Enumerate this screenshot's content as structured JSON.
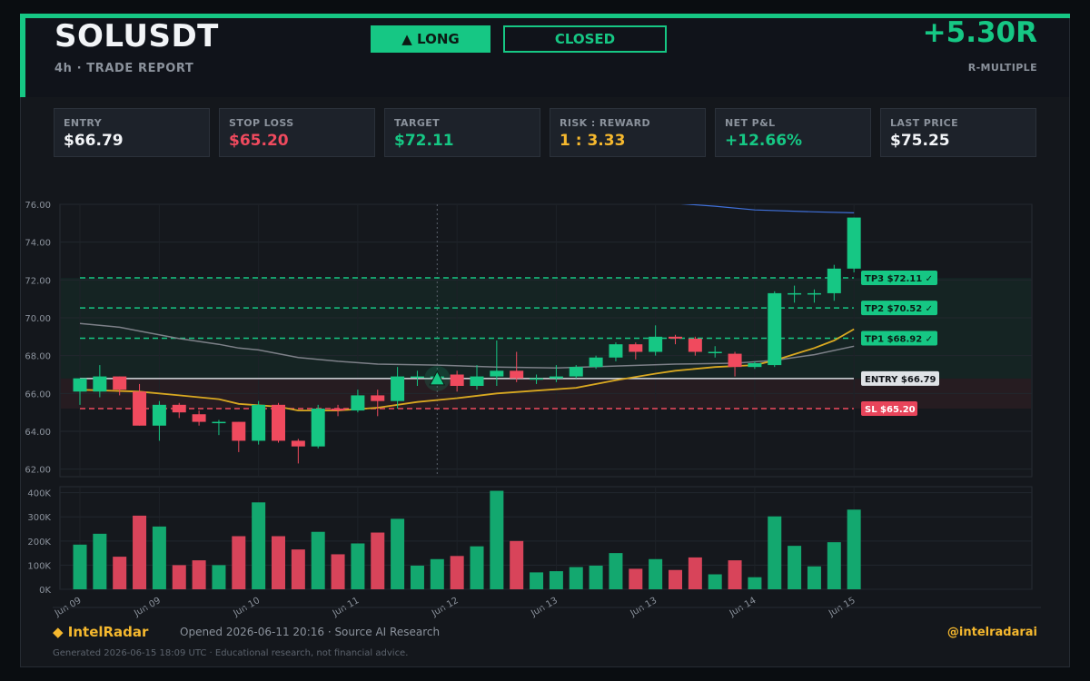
{
  "header": {
    "symbol": "SOLUSDT",
    "subtitle": "4h  ·  TRADE REPORT",
    "direction_label": "▲ LONG",
    "status_label": "CLOSED",
    "r_multiple": "+5.30R",
    "r_multiple_label": "R-MULTIPLE"
  },
  "stats": [
    {
      "label": "ENTRY",
      "value": "$66.79",
      "color": "#f2f4f7"
    },
    {
      "label": "STOP LOSS",
      "value": "$65.20",
      "color": "#f04a5e"
    },
    {
      "label": "TARGET",
      "value": "$72.11",
      "color": "#16c784"
    },
    {
      "label": "RISK : REWARD",
      "value": "1 : 3.33",
      "color": "#f5b82e"
    },
    {
      "label": "NET P&L",
      "value": "+12.66%",
      "color": "#16c784"
    },
    {
      "label": "LAST PRICE",
      "value": "$75.25",
      "color": "#f2f4f7"
    }
  ],
  "colors": {
    "up": "#16c784",
    "down": "#f04a5e",
    "accent": "#f5b82e",
    "muted": "#8b929c"
  },
  "chart_data": {
    "type": "candlestick",
    "ylim": [
      61.6,
      76.0
    ],
    "yticks": [
      "62.00",
      "64.00",
      "66.00",
      "68.00",
      "70.00",
      "72.00",
      "74.00",
      "76.00"
    ],
    "volume_ylim": [
      0,
      425000
    ],
    "volume_ticks": [
      "0K",
      "100K",
      "200K",
      "300K",
      "400K"
    ],
    "x_tick_labels": [
      {
        "i": 0,
        "label": "Jun 09"
      },
      {
        "i": 4,
        "label": "Jun 09"
      },
      {
        "i": 9,
        "label": "Jun 10"
      },
      {
        "i": 14,
        "label": "Jun 11"
      },
      {
        "i": 19,
        "label": "Jun 12"
      },
      {
        "i": 24,
        "label": "Jun 13"
      },
      {
        "i": 29,
        "label": "Jun 13"
      },
      {
        "i": 34,
        "label": "Jun 14"
      },
      {
        "i": 39,
        "label": "Jun 15"
      }
    ],
    "entry_index": 18,
    "candles": [
      {
        "o": 66.1,
        "h": 66.8,
        "l": 65.4,
        "c": 66.8,
        "v": 185000
      },
      {
        "o": 66.1,
        "h": 67.5,
        "l": 65.8,
        "c": 66.9,
        "v": 230000
      },
      {
        "o": 66.9,
        "h": 66.9,
        "l": 65.9,
        "c": 66.2,
        "v": 135000
      },
      {
        "o": 66.1,
        "h": 66.5,
        "l": 64.3,
        "c": 64.3,
        "v": 305000
      },
      {
        "o": 64.3,
        "h": 65.6,
        "l": 63.5,
        "c": 65.4,
        "v": 260000
      },
      {
        "o": 65.4,
        "h": 65.5,
        "l": 64.7,
        "c": 65.0,
        "v": 100000
      },
      {
        "o": 64.9,
        "h": 65.1,
        "l": 64.3,
        "c": 64.5,
        "v": 120000
      },
      {
        "o": 64.5,
        "h": 64.6,
        "l": 63.8,
        "c": 64.5,
        "v": 100000
      },
      {
        "o": 64.5,
        "h": 64.5,
        "l": 62.9,
        "c": 63.5,
        "v": 220000
      },
      {
        "o": 63.5,
        "h": 65.6,
        "l": 63.3,
        "c": 65.4,
        "v": 360000
      },
      {
        "o": 65.4,
        "h": 65.5,
        "l": 63.4,
        "c": 63.5,
        "v": 220000
      },
      {
        "o": 63.5,
        "h": 63.6,
        "l": 62.3,
        "c": 63.2,
        "v": 165000
      },
      {
        "o": 63.2,
        "h": 65.4,
        "l": 63.1,
        "c": 65.2,
        "v": 238000
      },
      {
        "o": 65.2,
        "h": 65.4,
        "l": 64.8,
        "c": 65.1,
        "v": 145000
      },
      {
        "o": 65.1,
        "h": 66.2,
        "l": 65.0,
        "c": 65.9,
        "v": 190000
      },
      {
        "o": 65.9,
        "h": 66.2,
        "l": 64.8,
        "c": 65.6,
        "v": 235000
      },
      {
        "o": 65.6,
        "h": 67.4,
        "l": 65.2,
        "c": 66.9,
        "v": 292000
      },
      {
        "o": 66.9,
        "h": 67.2,
        "l": 66.4,
        "c": 66.9,
        "v": 98000
      },
      {
        "o": 66.9,
        "h": 67.2,
        "l": 66.6,
        "c": 66.9,
        "v": 125000
      },
      {
        "o": 67.0,
        "h": 67.2,
        "l": 66.1,
        "c": 66.4,
        "v": 138000
      },
      {
        "o": 66.4,
        "h": 67.5,
        "l": 66.2,
        "c": 66.9,
        "v": 178000
      },
      {
        "o": 66.9,
        "h": 68.8,
        "l": 66.4,
        "c": 67.2,
        "v": 408000
      },
      {
        "o": 67.2,
        "h": 68.2,
        "l": 66.6,
        "c": 66.8,
        "v": 200000
      },
      {
        "o": 66.8,
        "h": 67.0,
        "l": 66.5,
        "c": 66.8,
        "v": 70000
      },
      {
        "o": 66.8,
        "h": 67.5,
        "l": 66.6,
        "c": 66.9,
        "v": 75000
      },
      {
        "o": 66.9,
        "h": 67.5,
        "l": 66.8,
        "c": 67.4,
        "v": 92000
      },
      {
        "o": 67.4,
        "h": 68.0,
        "l": 67.3,
        "c": 67.9,
        "v": 98000
      },
      {
        "o": 67.9,
        "h": 68.7,
        "l": 67.7,
        "c": 68.6,
        "v": 150000
      },
      {
        "o": 68.6,
        "h": 68.7,
        "l": 67.8,
        "c": 68.2,
        "v": 85000
      },
      {
        "o": 68.2,
        "h": 69.6,
        "l": 68.0,
        "c": 69.0,
        "v": 125000
      },
      {
        "o": 69.0,
        "h": 69.1,
        "l": 68.6,
        "c": 68.9,
        "v": 80000
      },
      {
        "o": 68.9,
        "h": 69.0,
        "l": 68.0,
        "c": 68.2,
        "v": 132000
      },
      {
        "o": 68.2,
        "h": 68.5,
        "l": 67.9,
        "c": 68.2,
        "v": 62000
      },
      {
        "o": 68.1,
        "h": 68.2,
        "l": 66.9,
        "c": 67.4,
        "v": 120000
      },
      {
        "o": 67.4,
        "h": 67.7,
        "l": 67.3,
        "c": 67.6,
        "v": 50000
      },
      {
        "o": 67.5,
        "h": 71.4,
        "l": 67.4,
        "c": 71.3,
        "v": 302000
      },
      {
        "o": 71.3,
        "h": 71.7,
        "l": 70.8,
        "c": 71.3,
        "v": 180000
      },
      {
        "o": 71.3,
        "h": 71.5,
        "l": 70.8,
        "c": 71.3,
        "v": 95000
      },
      {
        "o": 71.3,
        "h": 72.8,
        "l": 70.9,
        "c": 72.6,
        "v": 195000
      },
      {
        "o": 72.6,
        "h": 75.3,
        "l": 72.4,
        "c": 75.3,
        "v": 330000
      }
    ],
    "levels": [
      {
        "name": "TP3",
        "label": "TP3 $72.11  ✓",
        "value": 72.11,
        "kind": "tp"
      },
      {
        "name": "TP2",
        "label": "TP2 $70.52  ✓",
        "value": 70.52,
        "kind": "tp"
      },
      {
        "name": "TP1",
        "label": "TP1 $68.92  ✓",
        "value": 68.92,
        "kind": "tp"
      },
      {
        "name": "ENTRY",
        "label": "ENTRY $66.79",
        "value": 66.79,
        "kind": "entry"
      },
      {
        "name": "SL",
        "label": "SL $65.20",
        "value": 65.2,
        "kind": "sl"
      }
    ],
    "ma_fast": [
      {
        "i": 0,
        "y": 66.2
      },
      {
        "i": 3,
        "y": 66.1
      },
      {
        "i": 5,
        "y": 65.9
      },
      {
        "i": 7,
        "y": 65.7
      },
      {
        "i": 8,
        "y": 65.45
      },
      {
        "i": 10,
        "y": 65.3
      },
      {
        "i": 11,
        "y": 65.1
      },
      {
        "i": 13,
        "y": 65.1
      },
      {
        "i": 15,
        "y": 65.25
      },
      {
        "i": 17,
        "y": 65.55
      },
      {
        "i": 19,
        "y": 65.75
      },
      {
        "i": 21,
        "y": 66.0
      },
      {
        "i": 23,
        "y": 66.15
      },
      {
        "i": 25,
        "y": 66.3
      },
      {
        "i": 27,
        "y": 66.7
      },
      {
        "i": 29,
        "y": 67.05
      },
      {
        "i": 30,
        "y": 67.2
      },
      {
        "i": 32,
        "y": 67.4
      },
      {
        "i": 34,
        "y": 67.5
      },
      {
        "i": 35,
        "y": 67.75
      },
      {
        "i": 37,
        "y": 68.4
      },
      {
        "i": 38,
        "y": 68.8
      },
      {
        "i": 39,
        "y": 69.4
      }
    ],
    "ma_slow": [
      {
        "i": 0,
        "y": 69.7
      },
      {
        "i": 2,
        "y": 69.5
      },
      {
        "i": 3,
        "y": 69.3
      },
      {
        "i": 5,
        "y": 68.9
      },
      {
        "i": 7,
        "y": 68.6
      },
      {
        "i": 8,
        "y": 68.4
      },
      {
        "i": 9,
        "y": 68.3
      },
      {
        "i": 11,
        "y": 67.9
      },
      {
        "i": 13,
        "y": 67.7
      },
      {
        "i": 15,
        "y": 67.55
      },
      {
        "i": 18,
        "y": 67.5
      },
      {
        "i": 21,
        "y": 67.4
      },
      {
        "i": 24,
        "y": 67.35
      },
      {
        "i": 27,
        "y": 67.45
      },
      {
        "i": 30,
        "y": 67.55
      },
      {
        "i": 33,
        "y": 67.6
      },
      {
        "i": 35,
        "y": 67.75
      },
      {
        "i": 37,
        "y": 68.05
      },
      {
        "i": 39,
        "y": 68.5
      }
    ],
    "ma_long": [
      {
        "i": 28,
        "y": 76.3
      },
      {
        "i": 30,
        "y": 76.05
      },
      {
        "i": 32,
        "y": 75.9
      },
      {
        "i": 34,
        "y": 75.7
      },
      {
        "i": 37,
        "y": 75.6
      },
      {
        "i": 39,
        "y": 75.55
      }
    ]
  },
  "footer": {
    "brand": "◆ IntelRadar",
    "meta": "Opened 2026-06-11 20:16    ·    Source AI Research",
    "handle": "@intelradarai",
    "note": "Generated 2026-06-15 18:09 UTC  ·  Educational research, not financial advice."
  }
}
